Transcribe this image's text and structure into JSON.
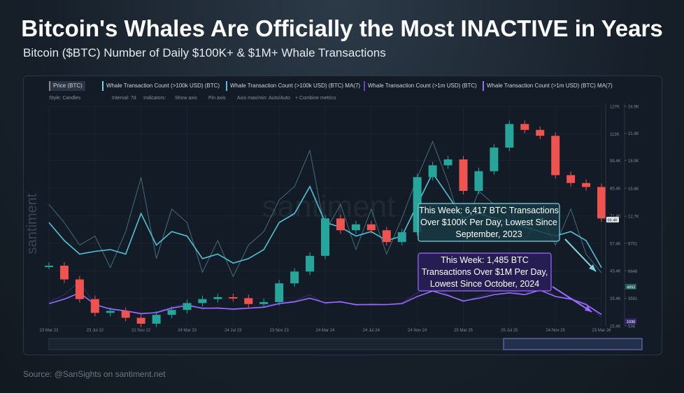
{
  "header": {
    "title": "Bitcoin's Whales Are Officially the Most INACTIVE in Years",
    "subtitle": "Bitcoin ($BTC) Number of Daily $100K+ & $1M+ Whale Transactions"
  },
  "toolbar": {
    "settings": [
      "Style: Candles",
      "Interval: 7d",
      "Indicators:",
      "Show axis",
      "Pin axis",
      "Axis max/min: Auto/Auto",
      "+ Combine metrics"
    ]
  },
  "watermark": "santiment",
  "source": "Source: @SanSights on santiment.net",
  "chart_data": {
    "type": "line",
    "categories": [
      "23 Mar 22",
      null,
      null,
      "23 Jul 22",
      null,
      null,
      "22 Nov 22",
      null,
      null,
      "24 Mar 23",
      null,
      null,
      "24 Jul 23",
      null,
      null,
      "23 Nov 23",
      null,
      null,
      "24 Mar 24",
      null,
      null,
      "24 Jul 24",
      null,
      null,
      "24 Nov 24",
      null,
      null,
      "25 Mar 25",
      null,
      null,
      "25 Jul 25",
      null,
      null,
      "24 Nov 25",
      null,
      null,
      "23 Mar 26"
    ],
    "series": [
      {
        "name": "Price (BTC)",
        "style": "candles",
        "color": "#26a69a",
        "down_color": "#ef5350",
        "values": [
          46000,
          39000,
          29000,
          22000,
          23000,
          19500,
          16500,
          21000,
          23500,
          27000,
          29000,
          30000,
          29500,
          26500,
          27500,
          37000,
          43000,
          51000,
          70000,
          64000,
          67000,
          64000,
          58000,
          63000,
          91000,
          97000,
          100000,
          84000,
          94000,
          106000,
          118000,
          115000,
          112000,
          92000,
          88000,
          86000,
          70000
        ]
      },
      {
        "name": "Whale Transaction Count (>100k USD) (BTC)",
        "style": "line",
        "axis": "y2",
        "color": "#7fd3e0",
        "values": [
          14000,
          12000,
          9500,
          10500,
          7000,
          11000,
          17000,
          8000,
          13500,
          12000,
          6500,
          10000,
          6000,
          9500,
          11000,
          14500,
          16000,
          20000,
          11000,
          14000,
          9000,
          13500,
          8500,
          12500,
          17000,
          21000,
          16500,
          11000,
          15500,
          14000,
          13500,
          10000,
          13000,
          9500,
          13500,
          8500,
          6417
        ]
      },
      {
        "name": "Whale Transaction Count (>100k USD) (BTC) MA(7)",
        "style": "line",
        "axis": "y2",
        "color": "#4fc3d6",
        "values": [
          12000,
          10000,
          8500,
          8800,
          9000,
          8500,
          13000,
          9500,
          11000,
          10500,
          8000,
          8500,
          7500,
          8000,
          9000,
          12000,
          13000,
          16000,
          12000,
          11500,
          10500,
          11000,
          10000,
          10500,
          14000,
          17500,
          15000,
          12500,
          13000,
          12500,
          12000,
          11500,
          11000,
          10500,
          11000,
          10000,
          7000
        ]
      },
      {
        "name": "Whale Transaction Count (>1m USD) (BTC)",
        "style": "line",
        "axis": "y2",
        "color": "#6a3fd0",
        "values": [
          3200,
          4000,
          5500,
          2800,
          2500,
          2200,
          1800,
          2100,
          2600,
          3000,
          2400,
          2600,
          2300,
          2500,
          2700,
          3100,
          3300,
          4000,
          3000,
          3300,
          2800,
          3000,
          2900,
          3100,
          4200,
          5000,
          4000,
          3200,
          3800,
          4300,
          4500,
          4000,
          5200,
          3800,
          3600,
          3000,
          1485
        ]
      },
      {
        "name": "Whale Transaction Count (>1m USD) (BTC) MA(7)",
        "style": "line",
        "axis": "y2",
        "color": "#9b6bff",
        "values": [
          3000,
          3500,
          4200,
          2900,
          2400,
          2200,
          1900,
          2000,
          2500,
          2800,
          2500,
          2500,
          2400,
          2500,
          2600,
          3000,
          3200,
          3600,
          3100,
          3200,
          2900,
          2900,
          2900,
          3000,
          3800,
          4400,
          3900,
          3300,
          3600,
          4000,
          4200,
          4000,
          4500,
          3800,
          3500,
          2900,
          1800
        ]
      }
    ],
    "ylim": [
      15400,
      127000
    ],
    "yticks": [
      {
        "value": 127000,
        "label": "127K"
      },
      {
        "value": 113000,
        "label": "113K"
      },
      {
        "value": 99400,
        "label": "99.4K"
      },
      {
        "value": 85400,
        "label": "85.4K"
      },
      {
        "value": 71400,
        "label": "71.4K"
      },
      {
        "value": 57400,
        "label": "57.4K"
      },
      {
        "value": 43400,
        "label": "43.4K"
      },
      {
        "value": 29400,
        "label": "29.4K"
      },
      {
        "value": 15400,
        "label": "15.4K"
      }
    ],
    "y2lim": [
      536,
      24900
    ],
    "y2ticks": [
      {
        "value": 24900,
        "label": "24.9K"
      },
      {
        "value": 21900,
        "label": "21.9K"
      },
      {
        "value": 18900,
        "label": "18.9K"
      },
      {
        "value": 15800,
        "label": "15.8K"
      },
      {
        "value": 12700,
        "label": "12.7K"
      },
      9701,
      6646,
      3591,
      536
    ],
    "price_tag": {
      "value": 69400,
      "label": "69.4K"
    },
    "y2_tags": [
      4893,
      1036
    ],
    "grid": true,
    "annotations": [
      {
        "lines": [
          "This Week: 6,417 BTC Transactions",
          "Over $100K Per Day, Lowest Since",
          "September, 2023"
        ],
        "color": "#7fd3e0"
      },
      {
        "lines": [
          "This Week: 1,485 BTC",
          "Transactions Over $1M Per Day,",
          "Lowest Since October, 2024"
        ],
        "color": "#9b6bff"
      }
    ]
  }
}
